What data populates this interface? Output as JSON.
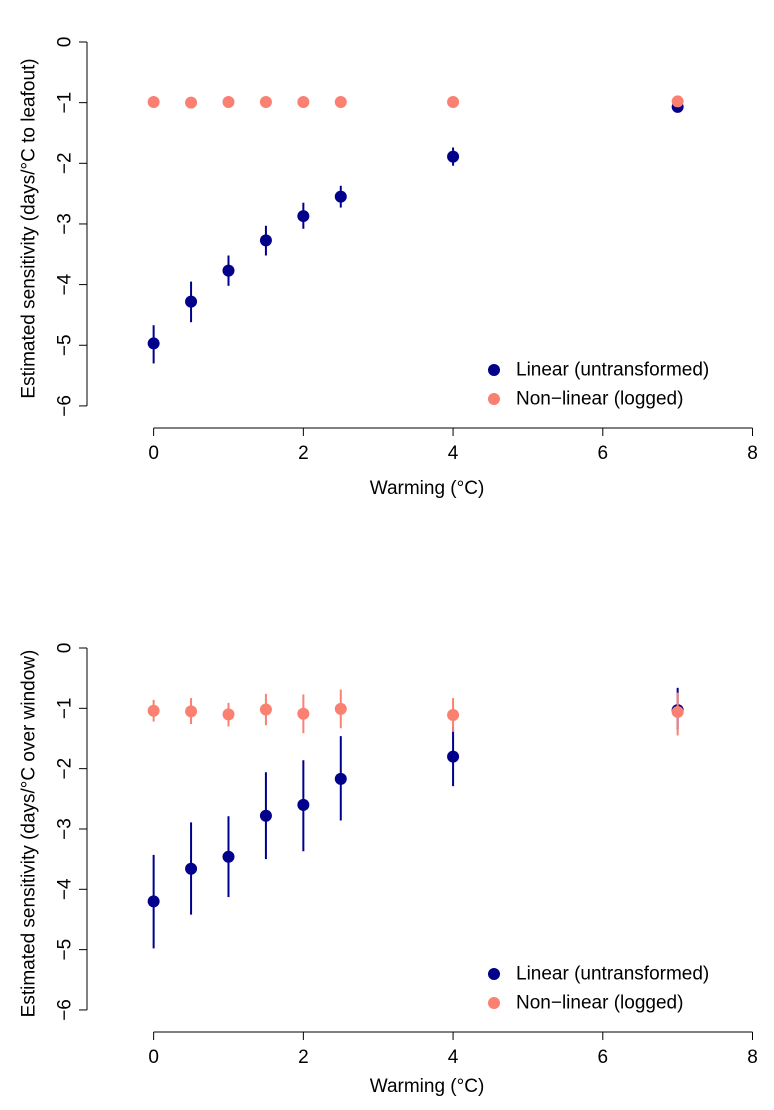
{
  "colors": {
    "linear": "#00008B",
    "nonlinear": "#FA8072"
  },
  "chart_data": [
    {
      "type": "scatter",
      "title": "",
      "xlabel": "Warming (°C)",
      "ylabel": "Estimated sensitivity (days/°C to leafout)",
      "xlim": [
        -0.85,
        8.1
      ],
      "ylim": [
        -6.15,
        0.0
      ],
      "x_ticks": [
        0,
        2,
        4,
        6,
        8
      ],
      "y_ticks": [
        0,
        -1,
        -2,
        -3,
        -4,
        -5,
        -6
      ],
      "x_tick_labels": [
        "0",
        "2",
        "4",
        "6",
        "8"
      ],
      "y_tick_labels": [
        "0",
        "−1",
        "−2",
        "−3",
        "−4",
        "−5",
        "−6"
      ],
      "legend_position": "bottom-right",
      "legend": [
        "Linear (untransformed)",
        "Non−linear (logged)"
      ],
      "grid": false,
      "series": [
        {
          "name": "Linear (untransformed)",
          "color": "#00008B",
          "x": [
            0,
            0.5,
            1,
            1.5,
            2,
            2.5,
            4,
            7
          ],
          "y": [
            -4.97,
            -4.28,
            -3.77,
            -3.27,
            -2.87,
            -2.55,
            -1.89,
            -1.07
          ],
          "ylow": [
            -5.3,
            -4.62,
            -4.02,
            -3.52,
            -3.08,
            -2.73,
            -2.04,
            -1.12
          ],
          "yhigh": [
            -4.67,
            -3.95,
            -3.52,
            -3.03,
            -2.65,
            -2.37,
            -1.74,
            -1.02
          ]
        },
        {
          "name": "Non−linear (logged)",
          "color": "#FA8072",
          "x": [
            0,
            0.5,
            1,
            1.5,
            2,
            2.5,
            4,
            7
          ],
          "y": [
            -0.99,
            -1.0,
            -0.99,
            -0.99,
            -0.99,
            -0.99,
            -0.99,
            -0.98
          ],
          "ylow": [
            -1.0,
            -1.01,
            -1.0,
            -1.0,
            -1.0,
            -1.0,
            -1.0,
            -0.99
          ],
          "yhigh": [
            -0.98,
            -0.99,
            -0.98,
            -0.98,
            -0.98,
            -0.98,
            -0.98,
            -0.97
          ]
        }
      ]
    },
    {
      "type": "scatter",
      "title": "",
      "xlabel": "Warming (°C)",
      "ylabel": "Estimated sensitivity (days/°C over window)",
      "xlim": [
        -0.85,
        8.1
      ],
      "ylim": [
        -6.15,
        0.0
      ],
      "x_ticks": [
        0,
        2,
        4,
        6,
        8
      ],
      "y_ticks": [
        0,
        -1,
        -2,
        -3,
        -4,
        -5,
        -6
      ],
      "x_tick_labels": [
        "0",
        "2",
        "4",
        "6",
        "8"
      ],
      "y_tick_labels": [
        "0",
        "−1",
        "−2",
        "−3",
        "−4",
        "−5",
        "−6"
      ],
      "legend_position": "bottom-right",
      "legend": [
        "Linear (untransformed)",
        "Non−linear (logged)"
      ],
      "grid": false,
      "series": [
        {
          "name": "Linear (untransformed)",
          "color": "#00008B",
          "x": [
            0,
            0.5,
            1,
            1.5,
            2,
            2.5,
            4,
            7
          ],
          "y": [
            -4.2,
            -3.66,
            -3.46,
            -2.78,
            -2.6,
            -2.17,
            -1.8,
            -1.03
          ],
          "ylow": [
            -4.98,
            -4.42,
            -4.13,
            -3.5,
            -3.37,
            -2.86,
            -2.29,
            -1.35
          ],
          "yhigh": [
            -3.43,
            -2.89,
            -2.79,
            -2.06,
            -1.86,
            -1.46,
            -1.31,
            -0.66
          ]
        },
        {
          "name": "Non−linear (logged)",
          "color": "#FA8072",
          "x": [
            0,
            0.5,
            1,
            1.5,
            2,
            2.5,
            4,
            7
          ],
          "y": [
            -1.04,
            -1.05,
            -1.1,
            -1.02,
            -1.09,
            -1.01,
            -1.11,
            -1.06
          ],
          "ylow": [
            -1.22,
            -1.26,
            -1.3,
            -1.28,
            -1.41,
            -1.33,
            -1.39,
            -1.45
          ],
          "yhigh": [
            -0.86,
            -0.83,
            -0.91,
            -0.76,
            -0.77,
            -0.69,
            -0.83,
            -0.74
          ]
        }
      ]
    }
  ]
}
